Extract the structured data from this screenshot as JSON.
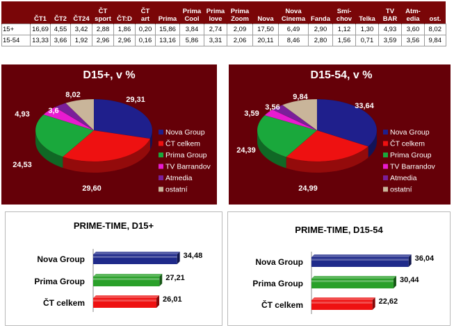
{
  "table": {
    "columns": [
      "ČT1",
      "ČT2",
      "ČT24",
      "ČT\nsport",
      "ČT:D",
      "ČT\nart",
      "Prima",
      "Prima\nCool",
      "Prima\nlove",
      "Prima\nZoom",
      "Nova",
      "Nova\nCinema",
      "Fanda",
      "Smí-\nchov",
      "Telka",
      "TV\nBAR",
      "Atm-\nedia",
      "ost."
    ],
    "rows": [
      {
        "label": "15+",
        "values": [
          "16,69",
          "4,55",
          "3,42",
          "2,88",
          "1,86",
          "0,20",
          "15,86",
          "3,84",
          "2,74",
          "2,09",
          "17,50",
          "6,49",
          "2,90",
          "1,12",
          "1,30",
          "4,93",
          "3,60",
          "8,02"
        ]
      },
      {
        "label": "15-54",
        "values": [
          "13,33",
          "3,66",
          "1,92",
          "2,96",
          "2,96",
          "0,16",
          "13,16",
          "5,86",
          "3,31",
          "2,06",
          "20,11",
          "8,46",
          "2,80",
          "1,56",
          "0,71",
          "3,59",
          "3,56",
          "9,84"
        ]
      }
    ]
  },
  "legend": [
    "Nova Group",
    "ČT celkem",
    "Prima Group",
    "TV Barrandov",
    "Atmedia",
    "ostatní"
  ],
  "colors": {
    "nova": "#1f1f8c",
    "ct": "#ee1111",
    "prima": "#1aa83c",
    "barrandov": "#e81bd0",
    "atmedia": "#7a1f9a",
    "ostatni": "#c9b59a",
    "panel": "#650008",
    "bar_blue": "#1f2a8a",
    "bar_green": "#2aa02a",
    "bar_red": "#ee1111"
  },
  "chart_data": [
    {
      "type": "pie",
      "title": "D15+, v %",
      "categories": [
        "Nova Group",
        "ČT celkem",
        "Prima Group",
        "TV Barrandov",
        "Atmedia",
        "ostatní"
      ],
      "values": [
        29.31,
        29.6,
        24.53,
        4.93,
        3.6,
        8.02
      ],
      "labels": [
        "29,31",
        "29,60",
        "24,53",
        "4,93",
        "3,6",
        "8,02"
      ]
    },
    {
      "type": "pie",
      "title": "D15-54, v %",
      "categories": [
        "Nova Group",
        "ČT celkem",
        "Prima Group",
        "TV Barrandov",
        "Atmedia",
        "ostatní"
      ],
      "values": [
        33.64,
        24.99,
        24.39,
        3.59,
        3.56,
        9.84
      ],
      "labels": [
        "33,64",
        "24,99",
        "24,39",
        "3,59",
        "3,56",
        "9,84"
      ]
    },
    {
      "type": "bar",
      "title": "PRIME-TIME, D15+",
      "categories": [
        "Nova Group",
        "Prima Group",
        "ČT celkem"
      ],
      "values": [
        34.48,
        27.21,
        26.01
      ],
      "labels": [
        "34,48",
        "27,21",
        "26,01"
      ]
    },
    {
      "type": "bar",
      "title": "PRIME-TIME, D15-54",
      "categories": [
        "Nova Group",
        "Prima Group",
        "ČT celkem"
      ],
      "values": [
        36.04,
        30.44,
        22.62
      ],
      "labels": [
        "36,04",
        "30,44",
        "22,62"
      ]
    }
  ]
}
